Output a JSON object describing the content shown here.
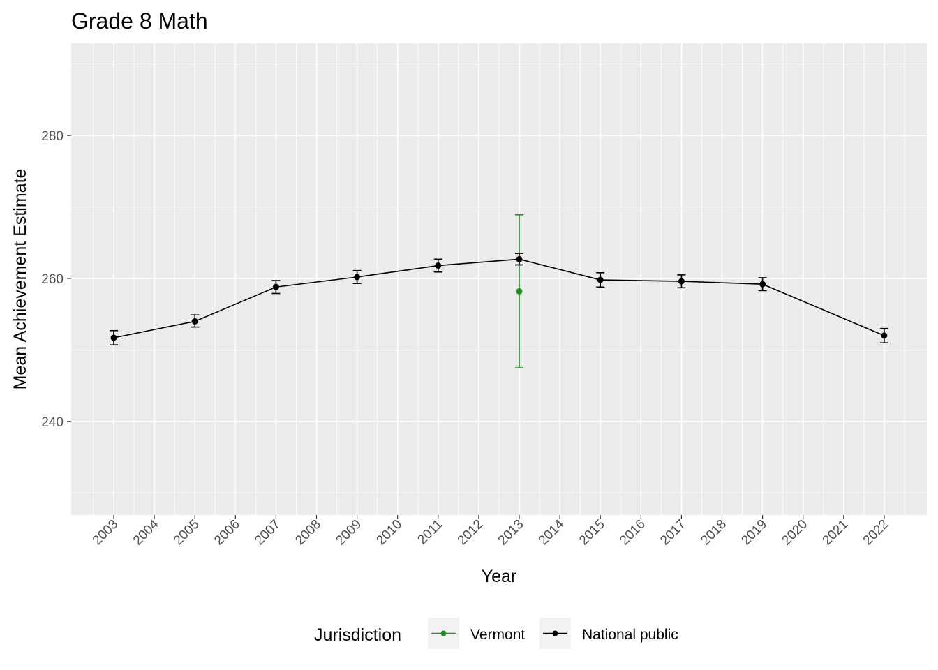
{
  "chart_data": {
    "type": "line",
    "title": "Grade 8 Math",
    "xlabel": "Year",
    "ylabel": "Mean Achievement Estimate",
    "x_ticks": [
      "2003",
      "2004",
      "2005",
      "2006",
      "2007",
      "2008",
      "2009",
      "2010",
      "2011",
      "2012",
      "2013",
      "2014",
      "2015",
      "2016",
      "2017",
      "2018",
      "2019",
      "2020",
      "2021",
      "2022"
    ],
    "y_ticks": [
      240,
      260,
      280
    ],
    "ylim": [
      226.9,
      292.9
    ],
    "grid": true,
    "legend": {
      "title": "Jurisdiction",
      "placement": "bottom",
      "entries": [
        "Vermont",
        "National public"
      ]
    },
    "series": [
      {
        "name": "Vermont",
        "color": "#228B22",
        "points": [
          {
            "x": "2013",
            "y": 258.2,
            "lower": 247.5,
            "upper": 268.9
          }
        ]
      },
      {
        "name": "National public",
        "color": "#000000",
        "points": [
          {
            "x": "2003",
            "y": 251.7,
            "lower": 250.7,
            "upper": 252.7
          },
          {
            "x": "2005",
            "y": 254.0,
            "lower": 253.2,
            "upper": 254.9
          },
          {
            "x": "2007",
            "y": 258.8,
            "lower": 257.9,
            "upper": 259.7
          },
          {
            "x": "2009",
            "y": 260.2,
            "lower": 259.3,
            "upper": 261.1
          },
          {
            "x": "2011",
            "y": 261.8,
            "lower": 260.9,
            "upper": 262.7
          },
          {
            "x": "2013",
            "y": 262.7,
            "lower": 261.9,
            "upper": 263.5
          },
          {
            "x": "2015",
            "y": 259.8,
            "lower": 258.8,
            "upper": 260.8
          },
          {
            "x": "2017",
            "y": 259.6,
            "lower": 258.7,
            "upper": 260.5
          },
          {
            "x": "2019",
            "y": 259.2,
            "lower": 258.3,
            "upper": 260.1
          },
          {
            "x": "2022",
            "y": 252.0,
            "lower": 251.0,
            "upper": 253.0
          }
        ]
      }
    ]
  }
}
